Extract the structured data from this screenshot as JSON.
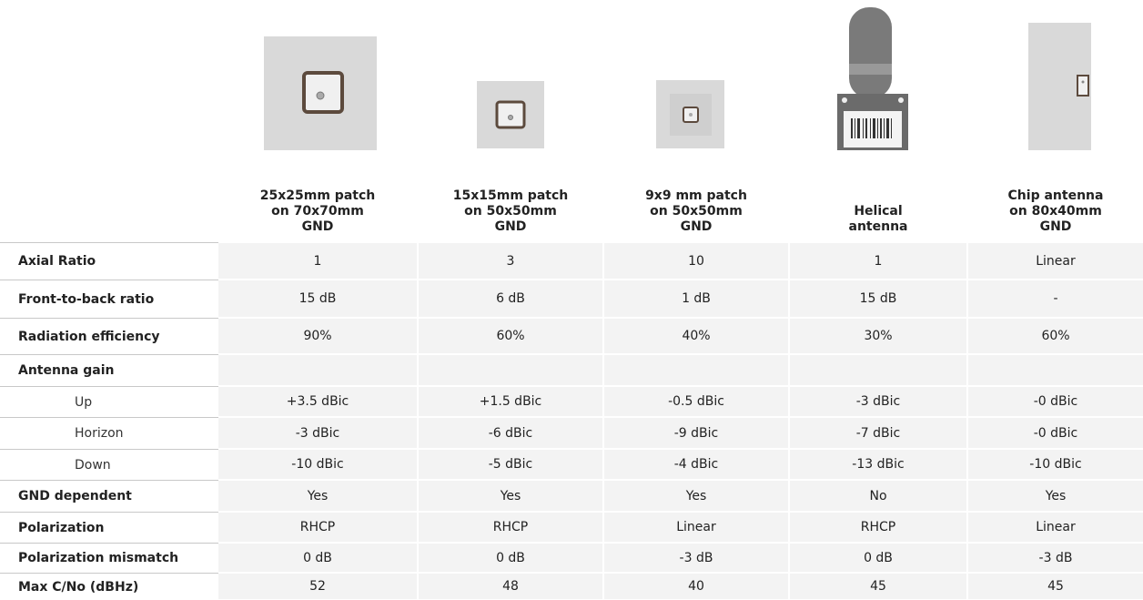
{
  "header": {
    "columns": [
      [
        "25x25mm patch",
        "on 70x70mm",
        "GND"
      ],
      [
        "15x15mm patch",
        "on 50x50mm",
        "GND"
      ],
      [
        "9x9 mm patch",
        "on 50x50mm",
        "GND"
      ],
      [
        "Helical",
        "antenna"
      ],
      [
        "Chip antenna",
        "on 80x40mm",
        "GND"
      ]
    ]
  },
  "table": {
    "rows": [
      {
        "label": "Axial Ratio",
        "values": [
          "1",
          "3",
          "10",
          "1",
          "Linear"
        ]
      },
      {
        "label": "Front-to-back ratio",
        "values": [
          "15 dB",
          "6 dB",
          "1 dB",
          "15 dB",
          "-"
        ]
      },
      {
        "label": "Radiation efficiency",
        "values": [
          "90%",
          "60%",
          "40%",
          "30%",
          "60%"
        ]
      },
      {
        "label": "Antenna gain",
        "values": [],
        "subrows": [
          {
            "label": "Up",
            "values": [
              "+3.5 dBic",
              "+1.5 dBic",
              "-0.5 dBic",
              "-3 dBic",
              "-0 dBic"
            ]
          },
          {
            "label": "Horizon",
            "values": [
              "-3 dBic",
              "-6 dBic",
              "-9 dBic",
              "-7 dBic",
              "-0 dBic"
            ]
          },
          {
            "label": "Down",
            "values": [
              "-10 dBic",
              "-5 dBic",
              "-4 dBic",
              "-13 dBic",
              "-10 dBic"
            ]
          }
        ]
      },
      {
        "label": "GND dependent",
        "values": [
          "Yes",
          "Yes",
          "Yes",
          "No",
          "Yes"
        ]
      },
      {
        "label": "Polarization",
        "values": [
          "RHCP",
          "RHCP",
          "Linear",
          "RHCP",
          "Linear"
        ]
      },
      {
        "label": "Polarization mismatch",
        "values": [
          "0 dB",
          "0 dB",
          "-3 dB",
          "0 dB",
          "-3 dB"
        ]
      },
      {
        "label": "Max C/No (dBHz)",
        "values": [
          "52",
          "48",
          "40",
          "45",
          "45"
        ]
      }
    ]
  }
}
